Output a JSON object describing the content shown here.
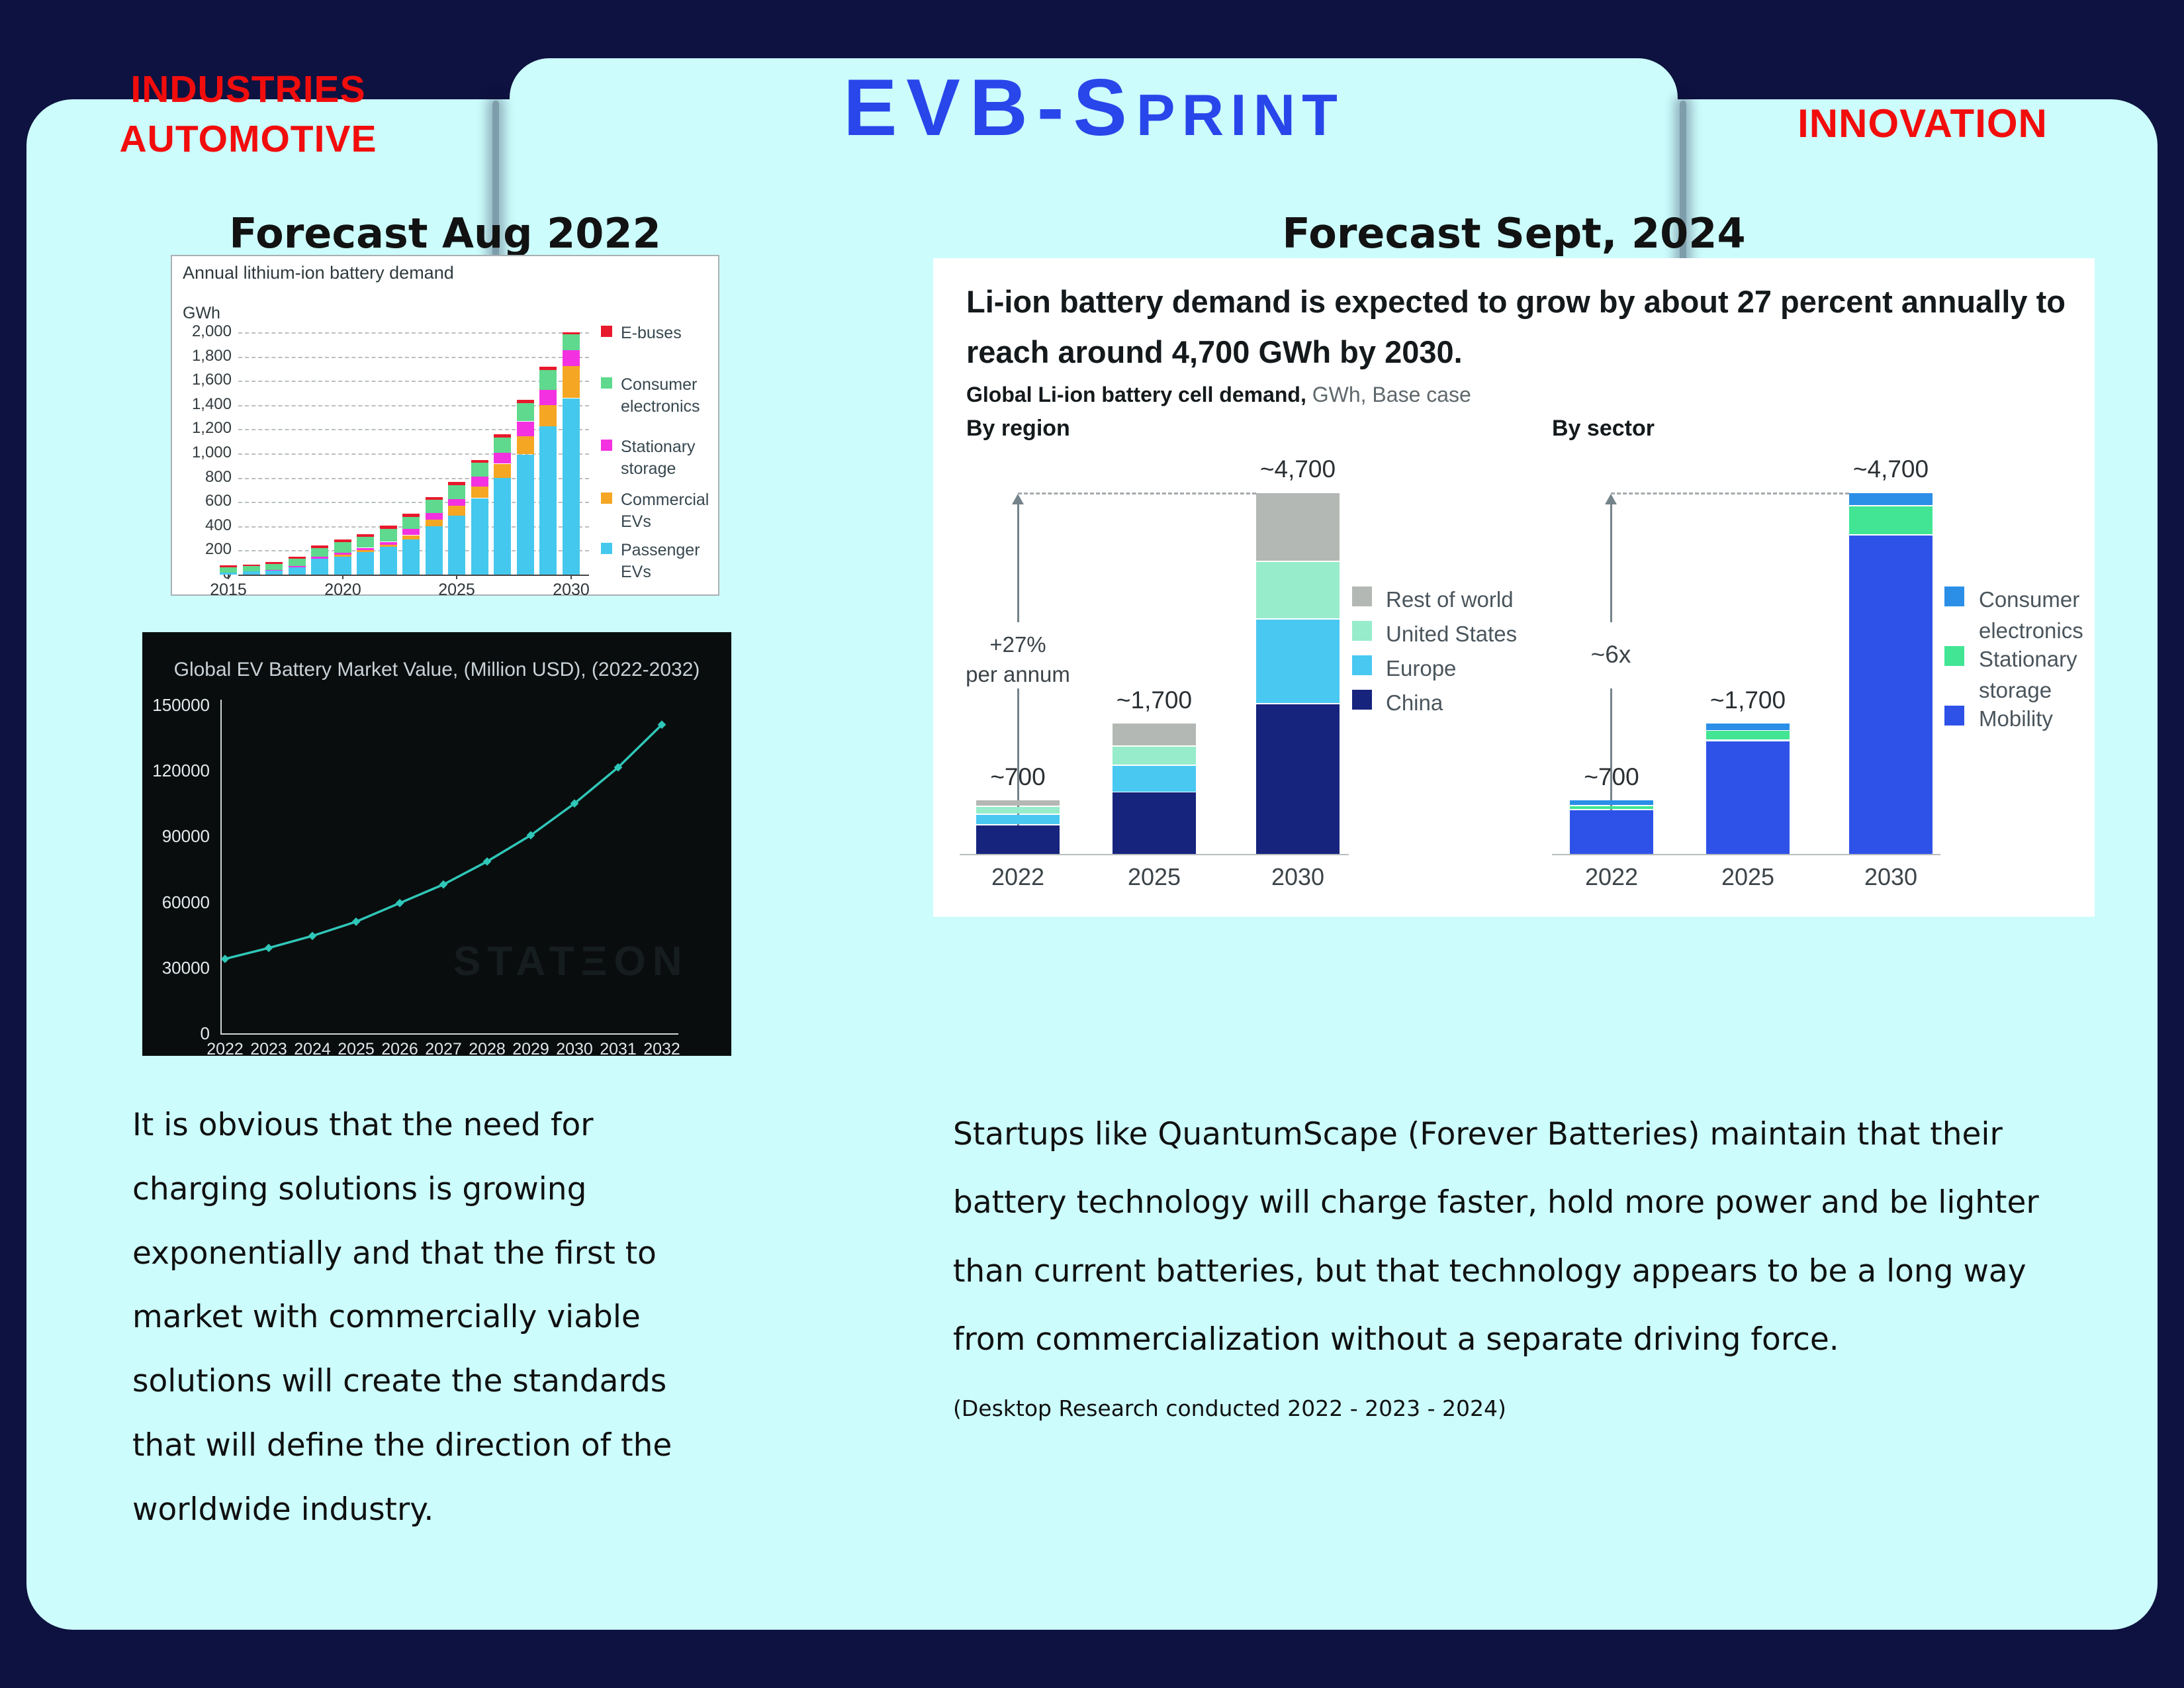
{
  "header": {
    "left": [
      "INDUSTRIES",
      "AUTOMOTIVE"
    ],
    "brand_big": "EVB-S",
    "brand_small": "PRINT",
    "right": "INNOVATION"
  },
  "left_column": {
    "title": "Forecast Aug 2022",
    "paragraph": [
      "It is obvious that the need for",
      "charging solutions is growing",
      "exponentially and that the first to",
      "market with commercially viable",
      "solutions will create the standards",
      "that will define the direction of the",
      "worldwide industry."
    ]
  },
  "right_column": {
    "title": "Forecast Sept, 2024",
    "card_heading": [
      "Li-ion battery demand is expected to grow by about 27 percent annually to",
      "reach around 4,700  GWh by 2030."
    ],
    "card_subtitle_bold": "Global Li-ion battery cell demand,",
    "card_subtitle_rest": " GWh, Base case",
    "paragraph": [
      "Startups like QuantumScape (Forever Batteries) maintain that their",
      "battery technology will charge faster, hold more power and be lighter",
      "than current batteries, but that technology appears to be a long way",
      "from commercialization without a separate driving force."
    ],
    "footnote": "(Desktop Research conducted 2022 - 2023 - 2024)"
  },
  "colors": {
    "page_bg": "#0e1240",
    "panel_bg": "#ccfcfc",
    "accent_red": "#f20d0d",
    "brand_blue": "#2946ea",
    "chart2_bg": "#0a0d0e",
    "chart2_line": "#2fc7b8"
  },
  "chart_data": [
    {
      "id": "annual-liion-demand",
      "type": "bar",
      "stacked": true,
      "title": "Annual lithium-ion battery demand",
      "ylabel": "GWh",
      "ylim": [
        0,
        2000
      ],
      "ytick_step": 200,
      "categories": [
        "2015",
        "2016",
        "2017",
        "2018",
        "2019",
        "2020",
        "2021",
        "2022",
        "2023",
        "2024",
        "2025",
        "2026",
        "2027",
        "2028",
        "2029",
        "2030"
      ],
      "x_axis_labels": [
        "2015",
        "2020",
        "2025",
        "2030"
      ],
      "series": [
        {
          "name": "Passenger EVs",
          "color": "#45c8ee",
          "values": [
            15,
            25,
            35,
            60,
            130,
            150,
            185,
            230,
            290,
            400,
            490,
            630,
            800,
            990,
            1225,
            1455
          ]
        },
        {
          "name": "Commercial EVs",
          "color": "#f5a623",
          "values": [
            0,
            0,
            0,
            0,
            5,
            15,
            20,
            20,
            35,
            55,
            80,
            100,
            115,
            155,
            175,
            270
          ]
        },
        {
          "name": "Stationary storage",
          "color": "#f331e0",
          "values": [
            0,
            0,
            5,
            10,
            15,
            15,
            15,
            20,
            50,
            55,
            55,
            80,
            90,
            120,
            125,
            130
          ]
        },
        {
          "name": "Consumer electronics",
          "color": "#5fd98d",
          "values": [
            45,
            45,
            50,
            60,
            70,
            90,
            90,
            110,
            105,
            110,
            115,
            115,
            130,
            150,
            165,
            130
          ]
        },
        {
          "name": "E-buses",
          "color": "#e8192c",
          "values": [
            15,
            12,
            15,
            18,
            20,
            20,
            22,
            25,
            25,
            20,
            25,
            20,
            25,
            25,
            25,
            15
          ]
        }
      ],
      "legend_order": [
        "E-buses",
        "Consumer electronics",
        "Stationary storage",
        "Commercial EVs",
        "Passenger EVs"
      ],
      "legend_position": "right",
      "grid": true
    },
    {
      "id": "ev-battery-market-value",
      "type": "line",
      "title": "Global EV Battery Market Value, (Million USD), (2022-2032)",
      "x": [
        "2022",
        "2023",
        "2024",
        "2025",
        "2026",
        "2027",
        "2028",
        "2029",
        "2030",
        "2031",
        "2032"
      ],
      "values": [
        34000,
        39000,
        44500,
        51000,
        59500,
        68000,
        78500,
        90500,
        105000,
        121500,
        141000
      ],
      "ylim": [
        0,
        150000
      ],
      "yticks": [
        0,
        30000,
        60000,
        90000,
        120000,
        150000
      ],
      "line_color": "#2fc7b8",
      "background": "#0a0d0e",
      "watermark": "STATΞON",
      "grid": false
    },
    {
      "id": "demand-by-region",
      "type": "bar",
      "stacked": true,
      "title": "By region",
      "categories": [
        "2022",
        "2025",
        "2030"
      ],
      "total_labels": [
        "~700",
        "~1,700",
        "~4,700"
      ],
      "growth_annotation": [
        "+27%",
        "per annum"
      ],
      "ylim": [
        0,
        4700
      ],
      "series": [
        {
          "name": "China",
          "color": "#17247d",
          "values": [
            370,
            800,
            1950
          ]
        },
        {
          "name": "Europe",
          "color": "#49c8f2",
          "values": [
            140,
            350,
            1100
          ]
        },
        {
          "name": "United States",
          "color": "#96eccb",
          "values": [
            100,
            250,
            750
          ]
        },
        {
          "name": "Rest of world",
          "color": "#b4b8b4",
          "values": [
            90,
            300,
            900
          ]
        }
      ],
      "legend_order": [
        "Rest of world",
        "United States",
        "Europe",
        "China"
      ],
      "legend_position": "right",
      "grid": false
    },
    {
      "id": "demand-by-sector",
      "type": "bar",
      "stacked": true,
      "title": "By sector",
      "categories": [
        "2022",
        "2025",
        "2030"
      ],
      "total_labels": [
        "~700",
        "~1,700",
        "~4,700"
      ],
      "growth_annotation": [
        "~6x"
      ],
      "ylim": [
        0,
        4700
      ],
      "series": [
        {
          "name": "Mobility",
          "color": "#2e52e8",
          "values": [
            570,
            1470,
            4150
          ]
        },
        {
          "name": "Stationary storage",
          "color": "#41e594",
          "values": [
            50,
            130,
            380
          ]
        },
        {
          "name": "Consumer electronics",
          "color": "#2b8fe8",
          "values": [
            80,
            100,
            170
          ]
        }
      ],
      "legend_order": [
        "Consumer electronics",
        "Stationary storage",
        "Mobility"
      ],
      "legend_position": "right",
      "grid": false
    }
  ]
}
